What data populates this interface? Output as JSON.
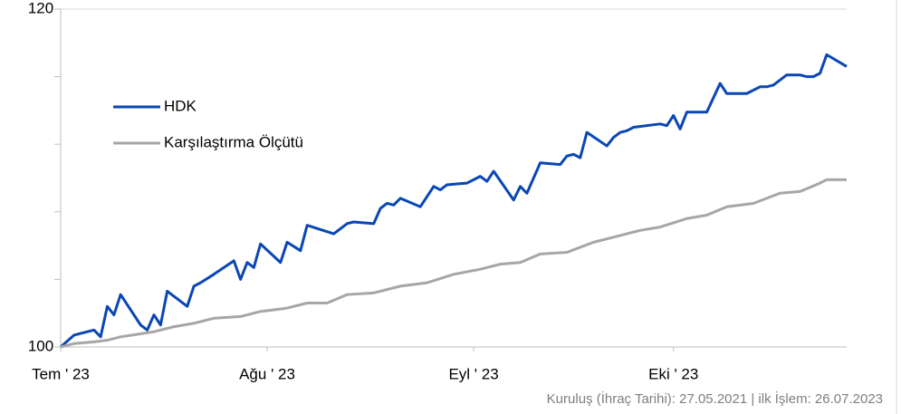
{
  "chart_data": {
    "type": "line",
    "xlim": [
      0,
      118
    ],
    "xticks": [
      {
        "value": 0,
        "label": "Tem ' 23"
      },
      {
        "value": 31,
        "label": "Ağu ' 23"
      },
      {
        "value": 62,
        "label": "Eyl ' 23"
      },
      {
        "value": 92,
        "label": "Eki ' 23"
      }
    ],
    "ylim": [
      100,
      120
    ],
    "yticks": [
      100,
      120
    ],
    "yminor_ticks": [
      104,
      108,
      112,
      116
    ],
    "legend": "upper left",
    "note": "Kuruluş (İhraç Tarihi): 27.05.2021 | ilk İşlem: 26.07.2023",
    "series": [
      {
        "name": "HDK",
        "color": "#0a47b4",
        "x": [
          0,
          2,
          5,
          6,
          7,
          8,
          9,
          12,
          13,
          14,
          15,
          16,
          19,
          20,
          21,
          23,
          26,
          27,
          28,
          29,
          30,
          33,
          34,
          36,
          37,
          41,
          42,
          43,
          44,
          47,
          48,
          49,
          50,
          51,
          54,
          56,
          57,
          58,
          61,
          62,
          63,
          64,
          65,
          68,
          69,
          70,
          72,
          75,
          76,
          77,
          78,
          79,
          82,
          83,
          84,
          85,
          86,
          90,
          91,
          92,
          93,
          94,
          97,
          99,
          100,
          103,
          105,
          106,
          107,
          109,
          111,
          112,
          113,
          114,
          115,
          118
        ],
        "values": [
          100,
          100.7,
          101.0,
          100.6,
          102.4,
          101.9,
          103.1,
          101.3,
          101.0,
          101.9,
          101.3,
          103.3,
          102.4,
          103.6,
          103.8,
          104.3,
          105.1,
          104.0,
          105.0,
          104.7,
          106.1,
          105.0,
          106.2,
          105.7,
          107.2,
          106.7,
          107.0,
          107.3,
          107.4,
          107.3,
          108.2,
          108.5,
          108.4,
          108.8,
          108.3,
          109.5,
          109.3,
          109.6,
          109.7,
          109.9,
          110.1,
          109.8,
          110.4,
          108.7,
          109.5,
          109.1,
          110.9,
          110.8,
          111.3,
          111.4,
          111.2,
          112.7,
          111.9,
          112.4,
          112.7,
          112.8,
          113.0,
          113.2,
          113.1,
          113.7,
          112.9,
          113.9,
          113.9,
          115.6,
          115.0,
          115.0,
          115.4,
          115.4,
          115.5,
          116.1,
          116.1,
          116.0,
          116.0,
          116.2,
          117.3,
          116.6
        ]
      },
      {
        "name": "Karşılaştırma Ölçütü",
        "color": "#a6a6a6",
        "x": [
          0,
          2,
          5,
          7,
          9,
          14,
          17,
          20,
          23,
          27,
          30,
          34,
          37,
          40,
          43,
          47,
          51,
          55,
          59,
          63,
          66,
          69,
          72,
          76,
          80,
          83,
          87,
          90,
          94,
          97,
          100,
          104,
          108,
          111,
          114,
          115,
          118
        ],
        "values": [
          100,
          100.2,
          100.3,
          100.4,
          100.6,
          100.9,
          101.2,
          101.4,
          101.7,
          101.8,
          102.1,
          102.3,
          102.6,
          102.6,
          103.1,
          103.2,
          103.6,
          103.8,
          104.3,
          104.6,
          104.9,
          105.0,
          105.5,
          105.6,
          106.2,
          106.5,
          106.9,
          107.1,
          107.6,
          107.8,
          108.3,
          108.5,
          109.1,
          109.2,
          109.7,
          109.9,
          109.9
        ]
      }
    ]
  }
}
